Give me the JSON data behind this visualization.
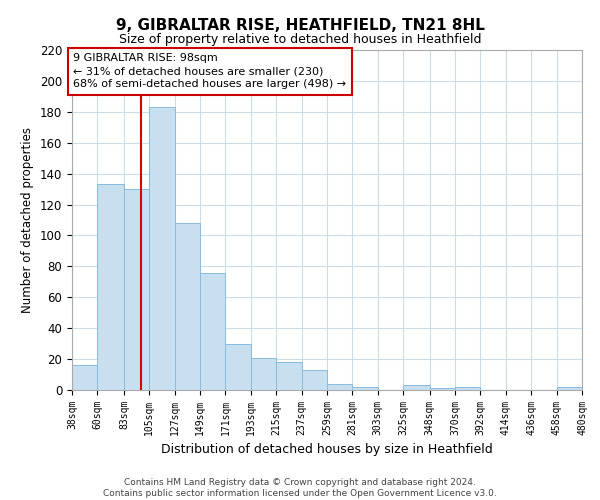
{
  "title": "9, GIBRALTAR RISE, HEATHFIELD, TN21 8HL",
  "subtitle": "Size of property relative to detached houses in Heathfield",
  "xlabel": "Distribution of detached houses by size in Heathfield",
  "ylabel": "Number of detached properties",
  "bar_color": "#c8dff0",
  "bar_edge_color": "#88bbdd",
  "background_color": "#ffffff",
  "grid_color": "#ccdde8",
  "bins": [
    "38sqm",
    "60sqm",
    "83sqm",
    "105sqm",
    "127sqm",
    "149sqm",
    "171sqm",
    "193sqm",
    "215sqm",
    "237sqm",
    "259sqm",
    "281sqm",
    "303sqm",
    "325sqm",
    "348sqm",
    "370sqm",
    "392sqm",
    "414sqm",
    "436sqm",
    "458sqm",
    "480sqm"
  ],
  "values": [
    16,
    133,
    130,
    183,
    108,
    76,
    30,
    21,
    18,
    13,
    4,
    2,
    0,
    3,
    1,
    2,
    0,
    0,
    0,
    2
  ],
  "bin_edges": [
    38,
    60,
    83,
    105,
    127,
    149,
    171,
    193,
    215,
    237,
    259,
    281,
    303,
    325,
    348,
    370,
    392,
    414,
    436,
    458,
    480
  ],
  "property_line_x": 98,
  "property_line_color": "#dd0000",
  "annotation_title": "9 GIBRALTAR RISE: 98sqm",
  "annotation_line1": "← 31% of detached houses are smaller (230)",
  "annotation_line2": "68% of semi-detached houses are larger (498) →",
  "annotation_box_color": "#ffffff",
  "annotation_box_edge": "#cc0000",
  "ylim": [
    0,
    220
  ],
  "yticks": [
    0,
    20,
    40,
    60,
    80,
    100,
    120,
    140,
    160,
    180,
    200,
    220
  ],
  "footer_line1": "Contains HM Land Registry data © Crown copyright and database right 2024.",
  "footer_line2": "Contains public sector information licensed under the Open Government Licence v3.0."
}
